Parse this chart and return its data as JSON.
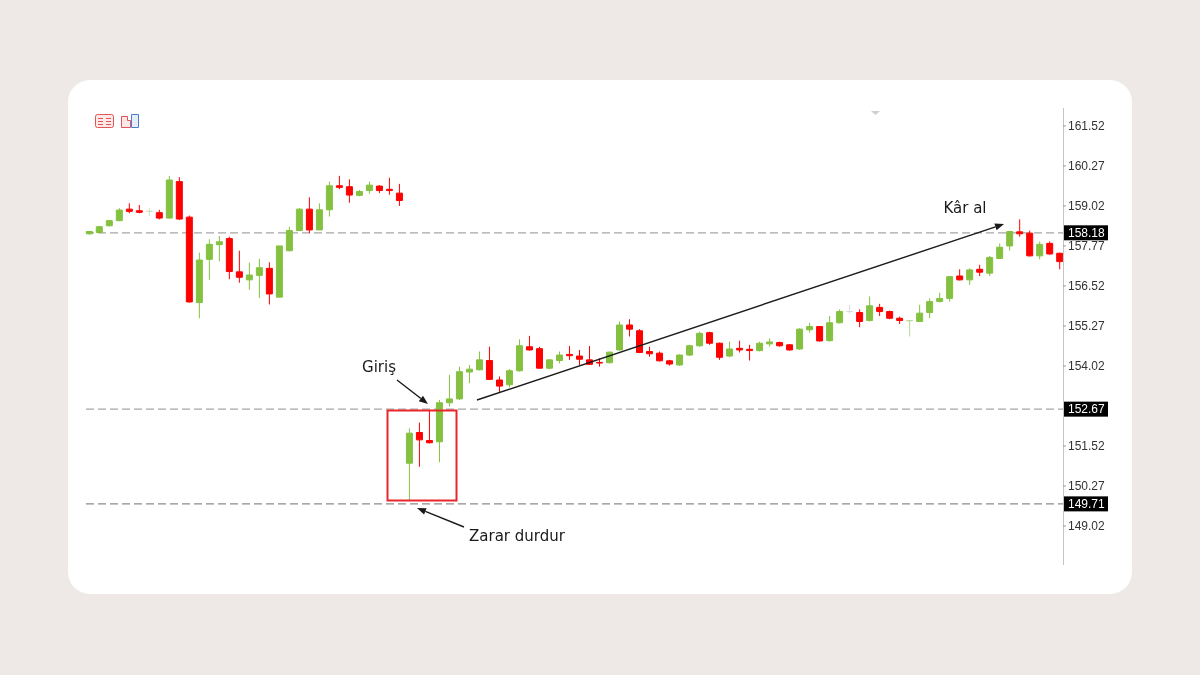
{
  "chart_data": {
    "type": "candlestick",
    "categories": [
      null,
      null,
      null,
      null,
      null,
      null,
      null,
      null,
      null,
      null,
      null,
      null,
      null,
      null,
      null,
      null,
      null,
      null,
      null,
      null,
      null,
      null,
      null,
      null,
      null,
      null,
      null,
      null,
      null,
      null,
      null,
      null,
      null,
      null,
      null,
      null,
      null,
      null,
      null,
      null,
      null,
      null,
      null,
      null,
      null,
      null,
      null,
      null,
      null,
      null,
      null,
      null,
      null,
      null,
      null,
      null,
      null,
      null,
      null,
      null,
      null,
      null,
      null,
      null,
      null,
      null,
      null,
      null,
      null,
      null,
      null,
      null,
      null,
      null,
      null,
      null,
      null,
      null,
      null,
      null,
      null,
      null,
      null,
      null,
      null,
      null,
      null,
      null,
      null,
      null,
      null,
      null,
      null,
      null,
      null,
      null,
      null,
      null
    ],
    "ohlc": [
      [
        158.15,
        158.24,
        158.12,
        158.22
      ],
      [
        158.19,
        158.4,
        158.17,
        158.37
      ],
      [
        158.4,
        158.58,
        158.38,
        158.56
      ],
      [
        158.56,
        158.95,
        158.54,
        158.89
      ],
      [
        158.92,
        159.1,
        158.79,
        158.85
      ],
      [
        158.87,
        159.05,
        158.79,
        158.82
      ],
      [
        158.85,
        158.95,
        158.7,
        158.85
      ],
      [
        158.81,
        158.9,
        158.6,
        158.64
      ],
      [
        158.64,
        159.96,
        158.62,
        159.83
      ],
      [
        159.78,
        159.92,
        158.58,
        158.61
      ],
      [
        158.67,
        158.72,
        156.0,
        156.02
      ],
      [
        156.0,
        157.56,
        155.51,
        157.33
      ],
      [
        157.35,
        157.98,
        156.71,
        157.82
      ],
      [
        157.81,
        158.08,
        157.29,
        157.9
      ],
      [
        158.0,
        158.06,
        156.73,
        156.97
      ],
      [
        156.96,
        157.62,
        156.62,
        156.79
      ],
      [
        156.71,
        157.25,
        156.4,
        156.86
      ],
      [
        156.85,
        157.37,
        156.14,
        157.09
      ],
      [
        157.07,
        157.26,
        155.94,
        156.27
      ],
      [
        156.17,
        157.77,
        156.17,
        157.77
      ],
      [
        157.62,
        158.37,
        157.6,
        158.25
      ],
      [
        158.25,
        158.95,
        158.25,
        158.92
      ],
      [
        158.92,
        159.29,
        158.17,
        158.27
      ],
      [
        158.27,
        159.1,
        158.27,
        158.9
      ],
      [
        158.9,
        159.78,
        158.69,
        159.65
      ],
      [
        159.65,
        159.96,
        159.54,
        159.6
      ],
      [
        159.62,
        159.85,
        159.12,
        159.36
      ],
      [
        159.35,
        159.52,
        159.32,
        159.47
      ],
      [
        159.5,
        159.78,
        159.4,
        159.67
      ],
      [
        159.64,
        159.67,
        159.42,
        159.5
      ],
      [
        159.54,
        159.9,
        159.37,
        159.5
      ],
      [
        159.42,
        159.71,
        159.02,
        159.19
      ],
      [
        150.98,
        152.07,
        149.83,
        151.92
      ],
      [
        151.94,
        152.25,
        150.87,
        151.71
      ],
      [
        151.69,
        152.65,
        151.6,
        151.62
      ],
      [
        151.65,
        152.96,
        151.01,
        152.87
      ],
      [
        152.87,
        153.74,
        152.75,
        152.99
      ],
      [
        152.99,
        154.0,
        152.96,
        153.84
      ],
      [
        153.83,
        154.05,
        153.48,
        153.92
      ],
      [
        153.9,
        154.47,
        153.88,
        154.21
      ],
      [
        154.19,
        154.62,
        153.58,
        153.6
      ],
      [
        153.58,
        153.69,
        153.17,
        153.39
      ],
      [
        153.43,
        153.92,
        153.35,
        153.87
      ],
      [
        153.87,
        154.85,
        153.84,
        154.65
      ],
      [
        154.62,
        154.96,
        154.5,
        154.52
      ],
      [
        154.56,
        154.62,
        153.93,
        153.95
      ],
      [
        153.95,
        154.23,
        153.92,
        154.21
      ],
      [
        154.19,
        154.47,
        154.1,
        154.36
      ],
      [
        154.38,
        154.64,
        154.21,
        154.34
      ],
      [
        154.33,
        154.52,
        154.05,
        154.23
      ],
      [
        154.21,
        154.64,
        154.05,
        154.07
      ],
      [
        154.13,
        154.26,
        154.0,
        154.11
      ],
      [
        154.12,
        154.47,
        154.1,
        154.45
      ],
      [
        154.52,
        155.41,
        154.5,
        155.3
      ],
      [
        155.3,
        155.48,
        154.94,
        155.17
      ],
      [
        155.12,
        155.17,
        154.42,
        154.44
      ],
      [
        154.47,
        154.62,
        154.31,
        154.4
      ],
      [
        154.42,
        154.47,
        154.16,
        154.18
      ],
      [
        154.18,
        154.21,
        154.03,
        154.08
      ],
      [
        154.05,
        154.38,
        154.03,
        154.36
      ],
      [
        154.36,
        154.68,
        154.33,
        154.65
      ],
      [
        154.65,
        155.09,
        154.62,
        155.04
      ],
      [
        155.06,
        155.09,
        154.68,
        154.73
      ],
      [
        154.73,
        154.75,
        154.21,
        154.29
      ],
      [
        154.33,
        154.78,
        154.29,
        154.55
      ],
      [
        154.57,
        154.81,
        154.44,
        154.52
      ],
      [
        154.54,
        154.68,
        154.19,
        154.5
      ],
      [
        154.5,
        154.78,
        154.47,
        154.73
      ],
      [
        154.71,
        154.88,
        154.62,
        154.77
      ],
      [
        154.75,
        154.78,
        154.62,
        154.65
      ],
      [
        154.68,
        154.7,
        154.5,
        154.52
      ],
      [
        154.55,
        155.2,
        154.52,
        155.17
      ],
      [
        155.15,
        155.37,
        155.06,
        155.25
      ],
      [
        155.25,
        155.27,
        154.78,
        154.8
      ],
      [
        154.81,
        155.58,
        154.78,
        155.37
      ],
      [
        155.37,
        155.79,
        155.35,
        155.72
      ],
      [
        155.72,
        155.93,
        155.66,
        155.72
      ],
      [
        155.69,
        155.79,
        155.23,
        155.41
      ],
      [
        155.44,
        156.19,
        155.41,
        155.9
      ],
      [
        155.85,
        155.96,
        155.58,
        155.72
      ],
      [
        155.72,
        155.75,
        155.48,
        155.51
      ],
      [
        155.51,
        155.56,
        155.33,
        155.44
      ],
      [
        155.43,
        155.46,
        154.94,
        155.44
      ],
      [
        155.41,
        155.93,
        155.4,
        155.67
      ],
      [
        155.69,
        156.13,
        155.51,
        156.03
      ],
      [
        156.03,
        156.31,
        156.01,
        156.13
      ],
      [
        156.13,
        156.83,
        156.03,
        156.81
      ],
      [
        156.83,
        157.04,
        156.69,
        156.71
      ],
      [
        156.71,
        157.07,
        156.55,
        157.02
      ],
      [
        157.04,
        157.18,
        156.83,
        156.95
      ],
      [
        156.92,
        157.46,
        156.83,
        157.41
      ],
      [
        157.38,
        157.85,
        157.36,
        157.73
      ],
      [
        157.77,
        158.25,
        157.62,
        158.22
      ],
      [
        158.21,
        158.6,
        158.06,
        158.15
      ],
      [
        158.17,
        158.25,
        157.44,
        157.46
      ],
      [
        157.46,
        157.91,
        157.35,
        157.82
      ],
      [
        157.85,
        157.91,
        157.49,
        157.52
      ],
      [
        157.54,
        157.56,
        157.04,
        157.28
      ]
    ],
    "colors": [
      "#84c140",
      "#84c140",
      "#84c140",
      "#84c140",
      "#ff0000",
      "#ff0000",
      "#cfe0bf",
      "#ff0000",
      "#84c140",
      "#ff0000",
      "#ff0000",
      "#84c140",
      "#84c140",
      "#84c140",
      "#ff0000",
      "#ff0000",
      "#84c140",
      "#84c140",
      "#ff0000",
      "#84c140",
      "#84c140",
      "#84c140",
      "#ff0000",
      "#84c140",
      "#84c140",
      "#ff0000",
      "#ff0000",
      "#84c140",
      "#84c140",
      "#ff0000",
      "#ff0000",
      "#ff0000",
      "#84c140",
      "#ff0000",
      "#ff0000",
      "#84c140",
      "#84c140",
      "#84c140",
      "#84c140",
      "#84c140",
      "#ff0000",
      "#ff0000",
      "#84c140",
      "#84c140",
      "#ff0000",
      "#ff0000",
      "#84c140",
      "#84c140",
      "#ff0000",
      "#ff0000",
      "#ff0000",
      "#ff0000",
      "#84c140",
      "#84c140",
      "#ff0000",
      "#ff0000",
      "#ff0000",
      "#ff0000",
      "#ff0000",
      "#84c140",
      "#84c140",
      "#84c140",
      "#ff0000",
      "#ff0000",
      "#84c140",
      "#ff0000",
      "#ff0000",
      "#84c140",
      "#84c140",
      "#ff0000",
      "#ff0000",
      "#84c140",
      "#84c140",
      "#ff0000",
      "#84c140",
      "#84c140",
      "#d9d9d9",
      "#ff0000",
      "#84c140",
      "#ff0000",
      "#ff0000",
      "#ff0000",
      "#b9d99c",
      "#84c140",
      "#84c140",
      "#84c140",
      "#84c140",
      "#ff0000",
      "#84c140",
      "#ff0000",
      "#84c140",
      "#84c140",
      "#84c140",
      "#ff0000",
      "#ff0000",
      "#84c140",
      "#ff0000",
      "#ff0000"
    ],
    "ylim": [
      147.8,
      162.08
    ],
    "yticks": [
      161.52,
      160.27,
      159.02,
      157.77,
      156.52,
      155.27,
      154.02,
      151.52,
      150.27,
      149.02
    ],
    "tick_labels": "y",
    "ref_lines": [
      {
        "axis": "y",
        "value": 158.18,
        "label": "158.18",
        "color": "#a6a6a6",
        "line_style": "dashed"
      },
      {
        "axis": "y",
        "value": 152.67,
        "label": "152.67",
        "color": "#a6a6a6",
        "line_style": "dashed"
      },
      {
        "axis": "y",
        "value": 149.71,
        "label": "149.71",
        "color": "#8c8c8c",
        "line_style": "dashed"
      }
    ],
    "annotations": [
      "Kâr al",
      "Giriş",
      "Zarar durdur"
    ]
  }
}
